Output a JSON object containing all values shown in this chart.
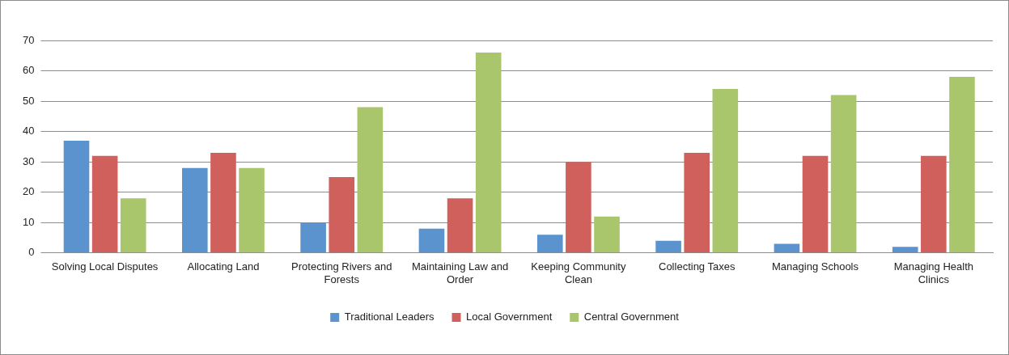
{
  "chart_data": {
    "type": "bar",
    "categories": [
      "Solving Local Disputes",
      "Allocating Land",
      "Protecting Rivers and Forests",
      "Maintaining Law and Order",
      "Keeping Community Clean",
      "Collecting Taxes",
      "Managing Schools",
      "Managing Health Clinics"
    ],
    "series": [
      {
        "name": "Traditional Leaders",
        "color": "#5b93cf",
        "values": [
          37,
          28,
          10,
          8,
          6,
          4,
          3,
          2
        ]
      },
      {
        "name": "Local Government",
        "color": "#d0605c",
        "values": [
          32,
          33,
          25,
          18,
          30,
          33,
          32,
          32
        ]
      },
      {
        "name": "Central Government",
        "color": "#a9c66c",
        "values": [
          18,
          28,
          48,
          66,
          12,
          54,
          52,
          58
        ]
      }
    ],
    "ylim": [
      0,
      70
    ],
    "yticks": [
      0,
      10,
      20,
      30,
      40,
      50,
      60,
      70
    ],
    "grid": "y",
    "legend": "bottom"
  }
}
